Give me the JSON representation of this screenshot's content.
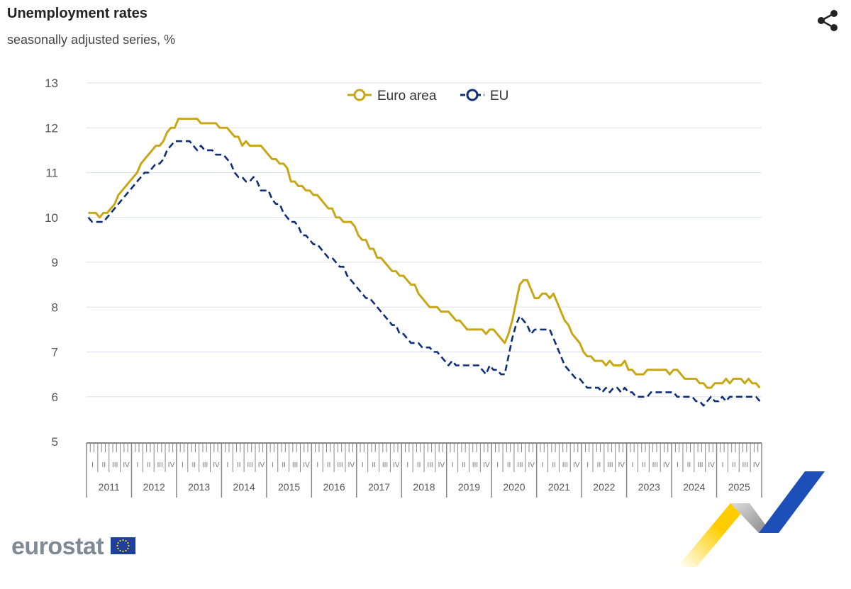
{
  "header": {
    "title": "Unemployment rates",
    "subtitle": "seasonally adjusted series, %",
    "share_icon": "share-icon"
  },
  "logo": {
    "text": "eurostat"
  },
  "chart_data": {
    "type": "line",
    "title": "Unemployment rates",
    "subtitle": "seasonally adjusted series, %",
    "xlabel": "",
    "ylabel": "",
    "ylim": [
      5,
      13
    ],
    "yticks": [
      "5",
      "6",
      "7",
      "8",
      "9",
      "10",
      "11",
      "12",
      "13"
    ],
    "years": [
      "2011",
      "2012",
      "2013",
      "2014",
      "2015",
      "2016",
      "2017",
      "2018",
      "2019",
      "2020",
      "2021",
      "2022",
      "2023",
      "2024",
      "2025"
    ],
    "quarters": [
      "I",
      "II",
      "III",
      "IV"
    ],
    "frequency": "monthly, Jan 2011 - Dec 2025",
    "grid": true,
    "legend_position": "top-center",
    "series": [
      {
        "name": "Euro area",
        "color": "#c9a614",
        "dash": false,
        "values": [
          10.1,
          10.1,
          10.1,
          10.0,
          10.1,
          10.1,
          10.2,
          10.3,
          10.5,
          10.6,
          10.7,
          10.8,
          10.9,
          11.0,
          11.2,
          11.3,
          11.4,
          11.5,
          11.6,
          11.6,
          11.7,
          11.9,
          12.0,
          12.0,
          12.2,
          12.2,
          12.2,
          12.2,
          12.2,
          12.2,
          12.1,
          12.1,
          12.1,
          12.1,
          12.1,
          12.0,
          12.0,
          12.0,
          11.9,
          11.8,
          11.8,
          11.6,
          11.7,
          11.6,
          11.6,
          11.6,
          11.6,
          11.5,
          11.4,
          11.3,
          11.3,
          11.2,
          11.2,
          11.1,
          10.8,
          10.8,
          10.7,
          10.7,
          10.6,
          10.6,
          10.5,
          10.5,
          10.4,
          10.3,
          10.2,
          10.2,
          10.0,
          10.0,
          9.9,
          9.9,
          9.9,
          9.8,
          9.6,
          9.5,
          9.5,
          9.3,
          9.3,
          9.1,
          9.1,
          9.0,
          8.9,
          8.8,
          8.8,
          8.7,
          8.7,
          8.6,
          8.5,
          8.5,
          8.3,
          8.2,
          8.1,
          8.0,
          8.0,
          8.0,
          7.9,
          7.9,
          7.9,
          7.8,
          7.7,
          7.7,
          7.6,
          7.5,
          7.5,
          7.5,
          7.5,
          7.5,
          7.4,
          7.5,
          7.5,
          7.4,
          7.3,
          7.2,
          7.4,
          7.7,
          8.1,
          8.5,
          8.6,
          8.6,
          8.4,
          8.2,
          8.2,
          8.3,
          8.3,
          8.2,
          8.3,
          8.1,
          7.9,
          7.7,
          7.6,
          7.4,
          7.3,
          7.2,
          7.0,
          6.9,
          6.9,
          6.8,
          6.8,
          6.8,
          6.7,
          6.8,
          6.7,
          6.7,
          6.7,
          6.8,
          6.6,
          6.6,
          6.5,
          6.5,
          6.5,
          6.6,
          6.6,
          6.6,
          6.6,
          6.6,
          6.6,
          6.5,
          6.6,
          6.6,
          6.5,
          6.4,
          6.4,
          6.4,
          6.4,
          6.3,
          6.3,
          6.2,
          6.2,
          6.3,
          6.3,
          6.3,
          6.4,
          6.3,
          6.4,
          6.4,
          6.4,
          6.3,
          6.4,
          6.3,
          6.3,
          6.2
        ]
      },
      {
        "name": "EU",
        "color": "#0e2f7a",
        "dash": true,
        "values": [
          10.0,
          9.9,
          9.9,
          9.9,
          9.9,
          10.0,
          10.1,
          10.2,
          10.3,
          10.4,
          10.5,
          10.6,
          10.7,
          10.8,
          10.9,
          11.0,
          11.0,
          11.1,
          11.2,
          11.2,
          11.3,
          11.5,
          11.6,
          11.7,
          11.7,
          11.7,
          11.7,
          11.7,
          11.6,
          11.5,
          11.6,
          11.5,
          11.5,
          11.5,
          11.4,
          11.4,
          11.4,
          11.3,
          11.2,
          11.0,
          10.9,
          10.9,
          10.8,
          10.8,
          10.9,
          10.8,
          10.6,
          10.6,
          10.6,
          10.4,
          10.3,
          10.3,
          10.1,
          10.0,
          9.9,
          9.9,
          9.8,
          9.6,
          9.6,
          9.5,
          9.4,
          9.4,
          9.3,
          9.2,
          9.1,
          9.1,
          9.0,
          8.9,
          8.9,
          8.7,
          8.6,
          8.5,
          8.4,
          8.3,
          8.2,
          8.2,
          8.1,
          8.0,
          7.9,
          7.8,
          7.7,
          7.6,
          7.6,
          7.4,
          7.4,
          7.3,
          7.2,
          7.2,
          7.2,
          7.1,
          7.1,
          7.1,
          7.0,
          7.0,
          6.9,
          6.8,
          6.7,
          6.8,
          6.7,
          6.7,
          6.7,
          6.7,
          6.7,
          6.7,
          6.7,
          6.6,
          6.5,
          6.7,
          6.6,
          6.6,
          6.5,
          6.5,
          6.9,
          7.3,
          7.6,
          7.8,
          7.7,
          7.6,
          7.4,
          7.5,
          7.5,
          7.5,
          7.5,
          7.5,
          7.3,
          7.1,
          6.9,
          6.7,
          6.6,
          6.5,
          6.4,
          6.4,
          6.3,
          6.2,
          6.2,
          6.2,
          6.2,
          6.1,
          6.2,
          6.1,
          6.2,
          6.2,
          6.1,
          6.2,
          6.1,
          6.1,
          6.0,
          6.0,
          6.0,
          6.0,
          6.1,
          6.1,
          6.1,
          6.1,
          6.1,
          6.1,
          6.1,
          6.0,
          6.0,
          6.0,
          6.0,
          6.0,
          5.9,
          5.9,
          5.8,
          5.9,
          6.0,
          5.9,
          5.9,
          6.0,
          5.9,
          6.0,
          6.0,
          6.0,
          6.0,
          6.0,
          6.0,
          6.0,
          6.0,
          5.9
        ]
      }
    ]
  }
}
